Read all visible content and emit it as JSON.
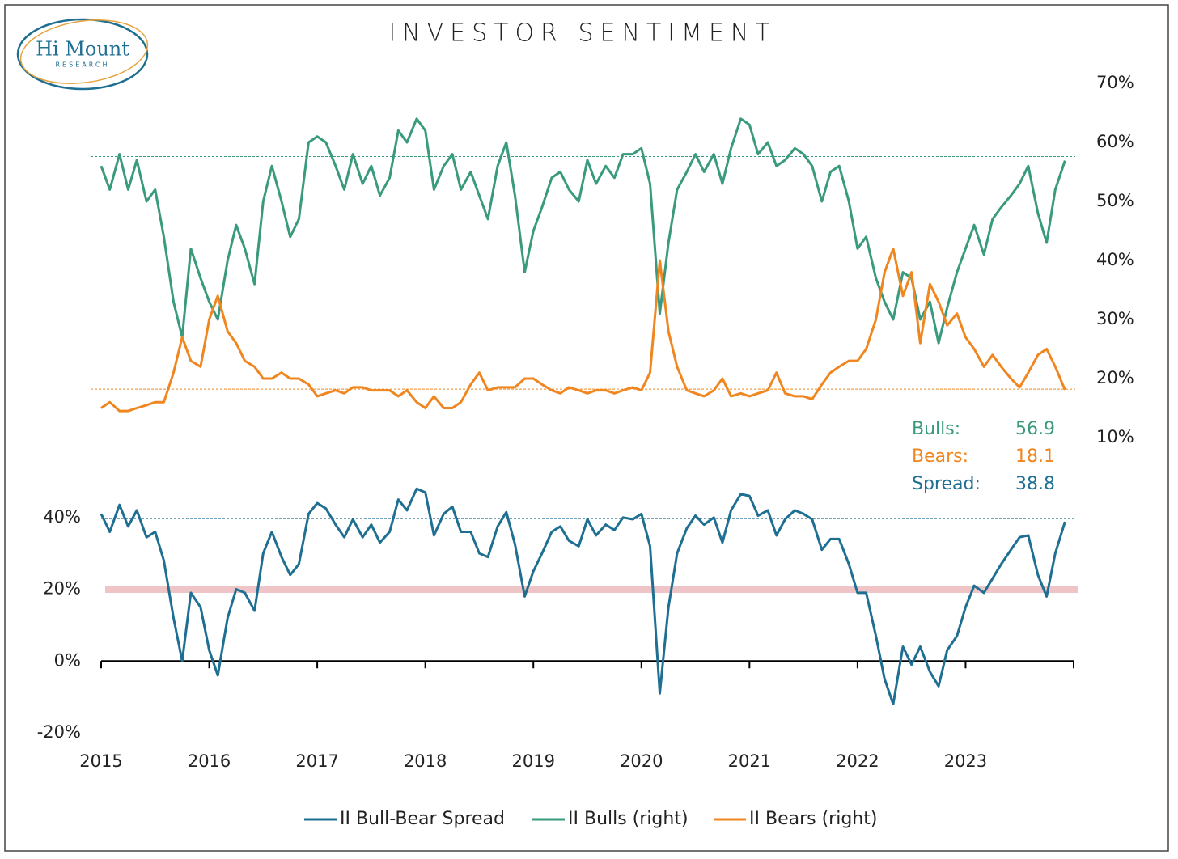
{
  "chart_data": [
    {
      "type": "line",
      "title": "INVESTOR SENTIMENT",
      "logo": {
        "name": "Hi Mount",
        "tagline": "RESEARCH"
      },
      "x": [
        2015.0,
        2015.08,
        2015.17,
        2015.25,
        2015.33,
        2015.42,
        2015.5,
        2015.58,
        2015.67,
        2015.75,
        2015.83,
        2015.92,
        2016.0,
        2016.08,
        2016.17,
        2016.25,
        2016.33,
        2016.42,
        2016.5,
        2016.58,
        2016.67,
        2016.75,
        2016.83,
        2016.92,
        2017.0,
        2017.08,
        2017.17,
        2017.25,
        2017.33,
        2017.42,
        2017.5,
        2017.58,
        2017.67,
        2017.75,
        2017.83,
        2017.92,
        2018.0,
        2018.08,
        2018.17,
        2018.25,
        2018.33,
        2018.42,
        2018.5,
        2018.58,
        2018.67,
        2018.75,
        2018.83,
        2018.92,
        2019.0,
        2019.08,
        2019.17,
        2019.25,
        2019.33,
        2019.42,
        2019.5,
        2019.58,
        2019.67,
        2019.75,
        2019.83,
        2019.92,
        2020.0,
        2020.08,
        2020.17,
        2020.25,
        2020.33,
        2020.42,
        2020.5,
        2020.58,
        2020.67,
        2020.75,
        2020.83,
        2020.92,
        2021.0,
        2021.08,
        2021.17,
        2021.25,
        2021.33,
        2021.42,
        2021.5,
        2021.58,
        2021.67,
        2021.75,
        2021.83,
        2021.92,
        2022.0,
        2022.08,
        2022.17,
        2022.25,
        2022.33,
        2022.42,
        2022.5,
        2022.58,
        2022.67,
        2022.75,
        2022.83,
        2022.92,
        2023.0,
        2023.08,
        2023.17,
        2023.25,
        2023.33,
        2023.42,
        2023.5,
        2023.58,
        2023.67,
        2023.75,
        2023.83,
        2023.92
      ],
      "xlim": [
        2015,
        2024
      ],
      "y2lim": [
        10,
        70
      ],
      "y2ticks": [
        {
          "value": 10,
          "label": "10%"
        },
        {
          "value": 20,
          "label": "20%"
        },
        {
          "value": 30,
          "label": "30%"
        },
        {
          "value": 40,
          "label": "40%"
        },
        {
          "value": 50,
          "label": "50%"
        },
        {
          "value": 60,
          "label": "60%"
        },
        {
          "value": 70,
          "label": "70%"
        }
      ],
      "series": [
        {
          "name": "II Bulls (right)",
          "color": "#3a9a7e",
          "axis": "y2",
          "values": [
            56,
            52,
            58,
            52,
            57,
            50,
            52,
            44,
            33,
            27,
            42,
            37,
            33,
            30,
            40,
            46,
            42,
            36,
            50,
            56,
            50,
            44,
            47,
            60,
            61,
            60,
            56,
            52,
            58,
            53,
            56,
            51,
            54,
            62,
            60,
            64,
            62,
            52,
            56,
            58,
            52,
            55,
            51,
            47,
            56,
            60,
            51,
            38,
            45,
            49,
            54,
            55,
            52,
            50,
            57,
            53,
            56,
            54,
            58,
            58,
            59,
            53,
            31,
            43,
            52,
            55,
            58,
            55,
            58,
            53,
            59,
            64,
            63,
            58,
            60,
            56,
            57,
            59,
            58,
            56,
            50,
            55,
            56,
            50,
            42,
            44,
            37,
            33,
            30,
            38,
            37,
            30,
            33,
            26,
            32,
            38,
            42,
            46,
            41,
            47,
            49,
            51,
            53,
            56,
            48,
            43,
            52,
            56.9
          ]
        },
        {
          "name": "II Bears (right)",
          "color": "#f0861f",
          "axis": "y2",
          "values": [
            15,
            16,
            14.5,
            14.5,
            15,
            15.5,
            16,
            16,
            21,
            27,
            23,
            22,
            30,
            34,
            28,
            26,
            23,
            22,
            20,
            20,
            21,
            20,
            20,
            19,
            17,
            17.5,
            18,
            17.5,
            18.5,
            18.5,
            18,
            18,
            18,
            17,
            18,
            16,
            15,
            17,
            15,
            15,
            16,
            19,
            21,
            18,
            18.5,
            18.5,
            18.5,
            20,
            20,
            19,
            18,
            17.5,
            18.5,
            18,
            17.5,
            18,
            18,
            17.5,
            18,
            18.5,
            18,
            21,
            40,
            28,
            22,
            18,
            17.5,
            17,
            18,
            20,
            17,
            17.5,
            17,
            17.5,
            18,
            21,
            17.5,
            17,
            17,
            16.5,
            19,
            21,
            22,
            23,
            23,
            25,
            30,
            38,
            42,
            34,
            38,
            26,
            36,
            33,
            29,
            31,
            27,
            25,
            22,
            24,
            22,
            20,
            18.5,
            21,
            24,
            25,
            22,
            18.1
          ]
        }
      ],
      "reference_lines": [
        {
          "value": 57.6,
          "color": "#3a9a7e"
        },
        {
          "value": 18.2,
          "color": "#f0861f"
        }
      ],
      "annotations": [
        {
          "label": "Bulls:",
          "value": 56.9,
          "color": "#3a9a7e"
        },
        {
          "label": "Bears:",
          "value": 18.1,
          "color": "#f0861f"
        },
        {
          "label": "Spread:",
          "value": 38.8,
          "color": "#1f6f93"
        }
      ]
    },
    {
      "type": "line",
      "x": [
        2015.0,
        2015.08,
        2015.17,
        2015.25,
        2015.33,
        2015.42,
        2015.5,
        2015.58,
        2015.67,
        2015.75,
        2015.83,
        2015.92,
        2016.0,
        2016.08,
        2016.17,
        2016.25,
        2016.33,
        2016.42,
        2016.5,
        2016.58,
        2016.67,
        2016.75,
        2016.83,
        2016.92,
        2017.0,
        2017.08,
        2017.17,
        2017.25,
        2017.33,
        2017.42,
        2017.5,
        2017.58,
        2017.67,
        2017.75,
        2017.83,
        2017.92,
        2018.0,
        2018.08,
        2018.17,
        2018.25,
        2018.33,
        2018.42,
        2018.5,
        2018.58,
        2018.67,
        2018.75,
        2018.83,
        2018.92,
        2019.0,
        2019.08,
        2019.17,
        2019.25,
        2019.33,
        2019.42,
        2019.5,
        2019.58,
        2019.67,
        2019.75,
        2019.83,
        2019.92,
        2020.0,
        2020.08,
        2020.17,
        2020.25,
        2020.33,
        2020.42,
        2020.5,
        2020.58,
        2020.67,
        2020.75,
        2020.83,
        2020.92,
        2021.0,
        2021.08,
        2021.17,
        2021.25,
        2021.33,
        2021.42,
        2021.5,
        2021.58,
        2021.67,
        2021.75,
        2021.83,
        2021.92,
        2022.0,
        2022.08,
        2022.17,
        2022.25,
        2022.33,
        2022.42,
        2022.5,
        2022.58,
        2022.67,
        2022.75,
        2022.83,
        2022.92,
        2023.0,
        2023.08,
        2023.17,
        2023.25,
        2023.33,
        2023.42,
        2023.5,
        2023.58,
        2023.67,
        2023.75,
        2023.83,
        2023.92
      ],
      "xlim": [
        2015,
        2024
      ],
      "xticks": [
        2015,
        2016,
        2017,
        2018,
        2019,
        2020,
        2021,
        2022,
        2023
      ],
      "ylim": [
        -20,
        60
      ],
      "yticks": [
        {
          "value": -20,
          "label": "-20%"
        },
        {
          "value": 0,
          "label": "0%"
        },
        {
          "value": 20,
          "label": "20%"
        },
        {
          "value": 40,
          "label": "40%"
        }
      ],
      "series": [
        {
          "name": "II Bull-Bear Spread",
          "color": "#1f6f93",
          "values": [
            41,
            36,
            43.5,
            37.5,
            42,
            34.5,
            36,
            28,
            12,
            0,
            19,
            15,
            3,
            -4,
            12,
            20,
            19,
            14,
            30,
            36,
            29,
            24,
            27,
            41,
            44,
            42.5,
            38,
            34.5,
            39.5,
            34.5,
            38,
            33,
            36,
            45,
            42,
            48,
            47,
            35,
            41,
            43,
            36,
            36,
            30,
            29,
            37.5,
            41.5,
            32.5,
            18,
            25,
            30,
            36,
            37.5,
            33.5,
            32,
            39.5,
            35,
            38,
            36.5,
            40,
            39.5,
            41,
            32,
            -9,
            15,
            30,
            37,
            40.5,
            38,
            40,
            33,
            42,
            46.5,
            46,
            40.5,
            42,
            35,
            39.5,
            42,
            41,
            39.5,
            31,
            34,
            34,
            27,
            19,
            19,
            7,
            -5,
            -12,
            4,
            -1,
            4,
            -3,
            -7,
            3,
            7,
            15,
            21,
            19,
            23,
            27,
            31,
            34.5,
            35,
            24,
            18,
            30,
            38.8
          ]
        }
      ],
      "reference_lines": [
        {
          "value": 39.7,
          "color": "#1f6f93"
        }
      ],
      "band": {
        "value": 20,
        "color": "#efc4c6"
      }
    }
  ]
}
